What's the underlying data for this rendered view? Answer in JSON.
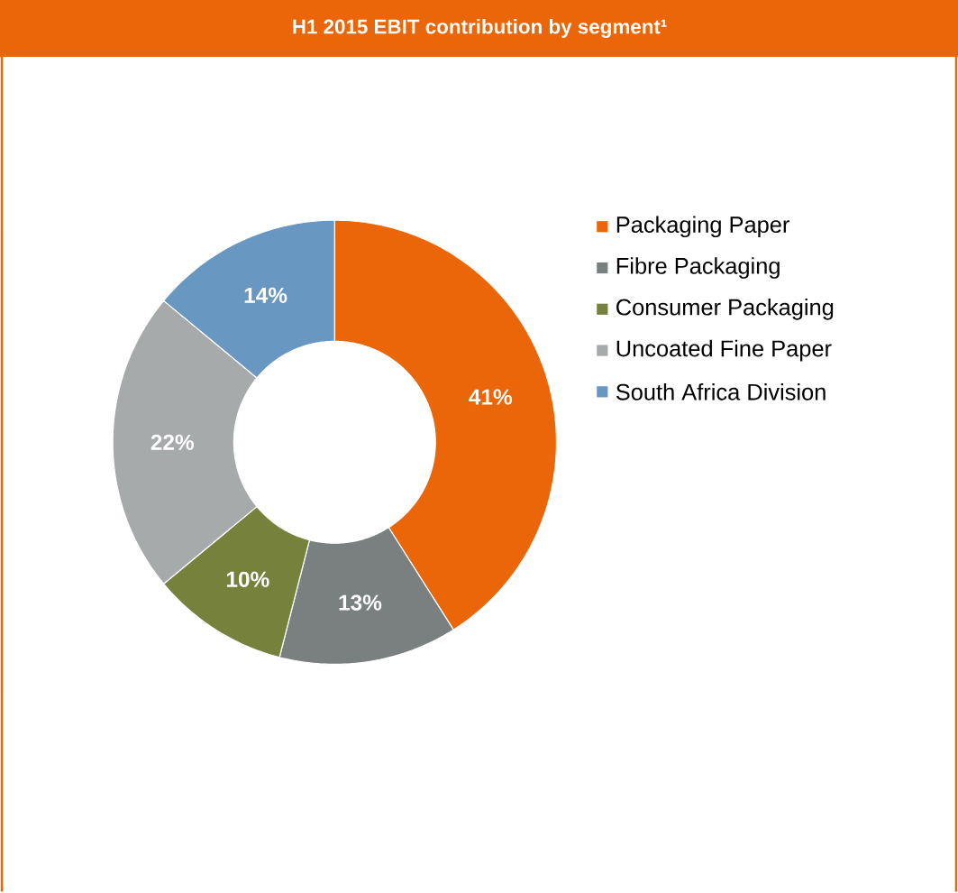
{
  "chart_data": {
    "type": "donut",
    "title": "H1 2015 EBIT contribution by segment¹",
    "categories": [
      "Packaging Paper",
      "Fibre Packaging",
      "Consumer Packaging",
      "Uncoated Fine Paper",
      "South Africa Division"
    ],
    "values": [
      41,
      13,
      10,
      22,
      14
    ],
    "colors": [
      "#eb6608",
      "#7a7f80",
      "#76823c",
      "#a7aaab",
      "#6897c2"
    ],
    "value_labels": [
      "41%",
      "13%",
      "10%",
      "22%",
      "14%"
    ],
    "legend": "right"
  }
}
